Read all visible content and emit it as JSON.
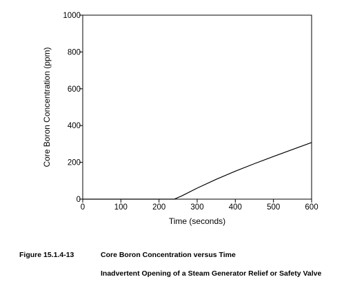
{
  "chart_data": {
    "type": "line",
    "xlabel": "Time (seconds)",
    "ylabel": "Core Boron Concentration (ppm)",
    "xlim": [
      0,
      600
    ],
    "ylim": [
      0,
      1000
    ],
    "xticks": [
      0,
      100,
      200,
      300,
      400,
      500,
      600
    ],
    "yticks": [
      0,
      200,
      400,
      600,
      800,
      1000
    ],
    "x_tick_labels": [
      "0",
      "100",
      "200",
      "300",
      "400",
      "500",
      "600"
    ],
    "y_tick_labels": [
      "0",
      "200",
      "400",
      "600",
      "800",
      "1000"
    ],
    "grid": false,
    "series": [
      {
        "x": [
          0,
          100,
          200,
          240,
          260,
          300,
          350,
          400,
          450,
          500,
          550,
          600
        ],
        "y": [
          0,
          0,
          0,
          0,
          18,
          60,
          108,
          152,
          193,
          232,
          270,
          308
        ]
      }
    ]
  },
  "figure": {
    "number": "Figure 15.1.4-13",
    "title": "Core Boron Concentration versus Time",
    "subtitle": "Inadvertent Opening of a Steam Generator Relief or Safety Valve"
  }
}
